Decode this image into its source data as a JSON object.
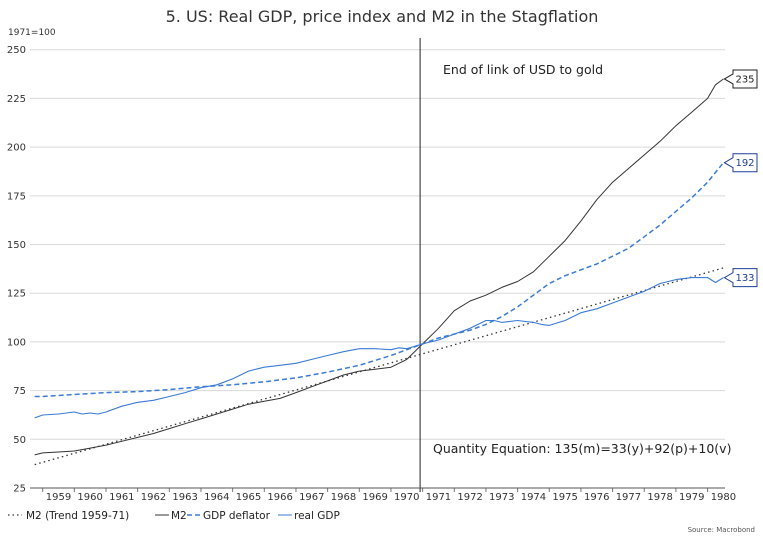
{
  "chart_data": {
    "type": "line",
    "title": "5. US: Real GDP, price index and M2 in the Stagflation",
    "unit_label": "1971=100",
    "source": "Source: Macrobond",
    "ylim": [
      25,
      255
    ],
    "yticks": [
      25,
      50,
      75,
      100,
      125,
      150,
      175,
      200,
      225,
      250
    ],
    "xlim": [
      1958.6,
      1980.55
    ],
    "xticks": [
      "1959",
      "1960",
      "1961",
      "1962",
      "1963",
      "1964",
      "1965",
      "1966",
      "1967",
      "1968",
      "1969",
      "1970",
      "1971",
      "1972",
      "1973",
      "1974",
      "1975",
      "1976",
      "1977",
      "1978",
      "1979",
      "1980"
    ],
    "vline": {
      "x": 1970.92,
      "label": "End of link of USD to gold"
    },
    "equation": "Quantity Equation: 135(m)=33(y)+92(p)+10(v)",
    "colors": {
      "m2": "#333333",
      "deflator": "#3a7bd5",
      "gdp": "#3a7bd5",
      "trend": "#333333",
      "grid": "#d9d9d9"
    },
    "series": [
      {
        "key": "trend",
        "name": "M2 (Trend 1959-71)",
        "style": "dotted",
        "x": [
          1958.75,
          1980.5
        ],
        "y": [
          37,
          138
        ]
      },
      {
        "key": "m2",
        "name": "M2",
        "style": "solid",
        "end_label": "235",
        "x": [
          1958.75,
          1959,
          1959.5,
          1960,
          1960.5,
          1961,
          1961.5,
          1962,
          1962.5,
          1963,
          1963.5,
          1964,
          1964.5,
          1965,
          1965.5,
          1966,
          1966.5,
          1967,
          1967.5,
          1968,
          1968.5,
          1969,
          1969.5,
          1970,
          1970.5,
          1971,
          1971.5,
          1972,
          1972.5,
          1973,
          1973.5,
          1974,
          1974.5,
          1975,
          1975.5,
          1976,
          1976.5,
          1977,
          1977.5,
          1978,
          1978.5,
          1979,
          1979.5,
          1980,
          1980.25,
          1980.5
        ],
        "y": [
          42,
          43,
          43.5,
          44,
          45.5,
          47,
          49,
          51,
          53,
          55.5,
          58,
          60.5,
          63,
          65.5,
          68,
          69.5,
          71,
          74,
          77,
          80,
          83,
          85,
          86,
          87,
          91,
          99,
          107,
          116,
          121,
          124,
          128,
          131,
          136,
          144,
          152,
          162,
          173,
          182,
          189,
          196,
          203,
          211,
          218,
          225,
          232,
          235
        ]
      },
      {
        "key": "deflator",
        "name": "GDP deflator",
        "style": "dashed",
        "end_label": "192",
        "x": [
          1958.75,
          1959,
          1960,
          1961,
          1962,
          1963,
          1964,
          1965,
          1966,
          1967,
          1968,
          1969,
          1970,
          1971,
          1971.5,
          1972,
          1972.5,
          1973,
          1973.5,
          1974,
          1974.5,
          1975,
          1975.5,
          1976,
          1976.5,
          1977,
          1977.5,
          1978,
          1978.5,
          1979,
          1979.5,
          1980,
          1980.5
        ],
        "y": [
          72,
          72,
          73,
          74,
          74.5,
          75.5,
          77,
          78,
          79.5,
          81.5,
          84.5,
          88,
          93,
          99,
          102,
          104,
          106,
          109,
          113,
          118,
          124,
          130,
          134,
          137,
          140,
          144,
          148,
          154,
          160,
          167,
          174,
          182,
          192
        ]
      },
      {
        "key": "gdp",
        "name": "real GDP",
        "style": "solid-thin",
        "end_label": "133",
        "x": [
          1958.75,
          1959,
          1959.5,
          1960,
          1960.25,
          1960.5,
          1960.75,
          1961,
          1961.5,
          1962,
          1962.5,
          1963,
          1963.5,
          1964,
          1964.5,
          1965,
          1965.5,
          1966,
          1966.5,
          1967,
          1967.5,
          1968,
          1968.5,
          1969,
          1969.5,
          1970,
          1970.25,
          1970.5,
          1971,
          1971.5,
          1972,
          1972.5,
          1973,
          1973.25,
          1973.5,
          1974,
          1974.5,
          1974.75,
          1975,
          1975.5,
          1976,
          1976.5,
          1977,
          1977.5,
          1978,
          1978.5,
          1979,
          1979.5,
          1980,
          1980.25,
          1980.5
        ],
        "y": [
          61,
          62.5,
          63,
          64,
          63,
          63.5,
          63,
          64,
          67,
          69,
          70,
          72,
          74,
          76.5,
          78,
          81,
          85,
          87,
          88,
          89,
          91,
          93,
          95,
          96.5,
          96.5,
          96,
          97,
          96.5,
          99,
          101,
          104,
          107,
          111,
          111,
          110,
          111,
          110,
          109,
          108.5,
          111,
          115,
          117,
          120,
          123,
          126,
          130,
          132,
          133,
          133,
          130.5,
          133
        ]
      }
    ]
  }
}
